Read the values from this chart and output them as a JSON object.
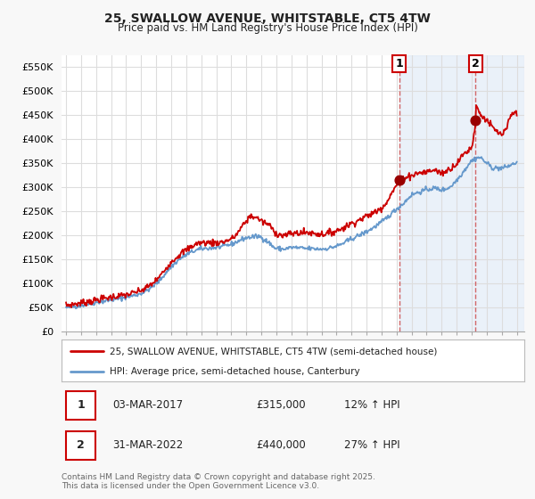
{
  "title": "25, SWALLOW AVENUE, WHITSTABLE, CT5 4TW",
  "subtitle": "Price paid vs. HM Land Registry's House Price Index (HPI)",
  "ylabel_ticks": [
    "£0",
    "£50K",
    "£100K",
    "£150K",
    "£200K",
    "£250K",
    "£300K",
    "£350K",
    "£400K",
    "£450K",
    "£500K",
    "£550K"
  ],
  "ytick_values": [
    0,
    50000,
    100000,
    150000,
    200000,
    250000,
    300000,
    350000,
    400000,
    450000,
    500000,
    550000
  ],
  "ylim": [
    0,
    575000
  ],
  "xlim_start": 1994.7,
  "xlim_end": 2025.5,
  "background_color": "#f8f8f8",
  "plot_bg_color": "#ffffff",
  "grid_color": "#dddddd",
  "line1_color": "#cc0000",
  "line2_color": "#6699cc",
  "vline1_color": "#cc4444",
  "vline2_color": "#cc4444",
  "vline1_x": 2017.17,
  "vline2_x": 2022.25,
  "shade_color": "#dde8f5",
  "shade_alpha": 0.6,
  "dot1_x": 2017.17,
  "dot1_y": 315000,
  "dot2_x": 2022.25,
  "dot2_y": 440000,
  "dot_color": "#990000",
  "dot_size": 60,
  "annotation1_label": "1",
  "annotation2_label": "2",
  "legend1_label": "25, SWALLOW AVENUE, WHITSTABLE, CT5 4TW (semi-detached house)",
  "legend2_label": "HPI: Average price, semi-detached house, Canterbury",
  "note1_label": "1",
  "note1_date": "03-MAR-2017",
  "note1_price": "£315,000",
  "note1_hpi": "12% ↑ HPI",
  "note2_label": "2",
  "note2_date": "31-MAR-2022",
  "note2_price": "£440,000",
  "note2_hpi": "27% ↑ HPI",
  "footer": "Contains HM Land Registry data © Crown copyright and database right 2025.\nThis data is licensed under the Open Government Licence v3.0."
}
